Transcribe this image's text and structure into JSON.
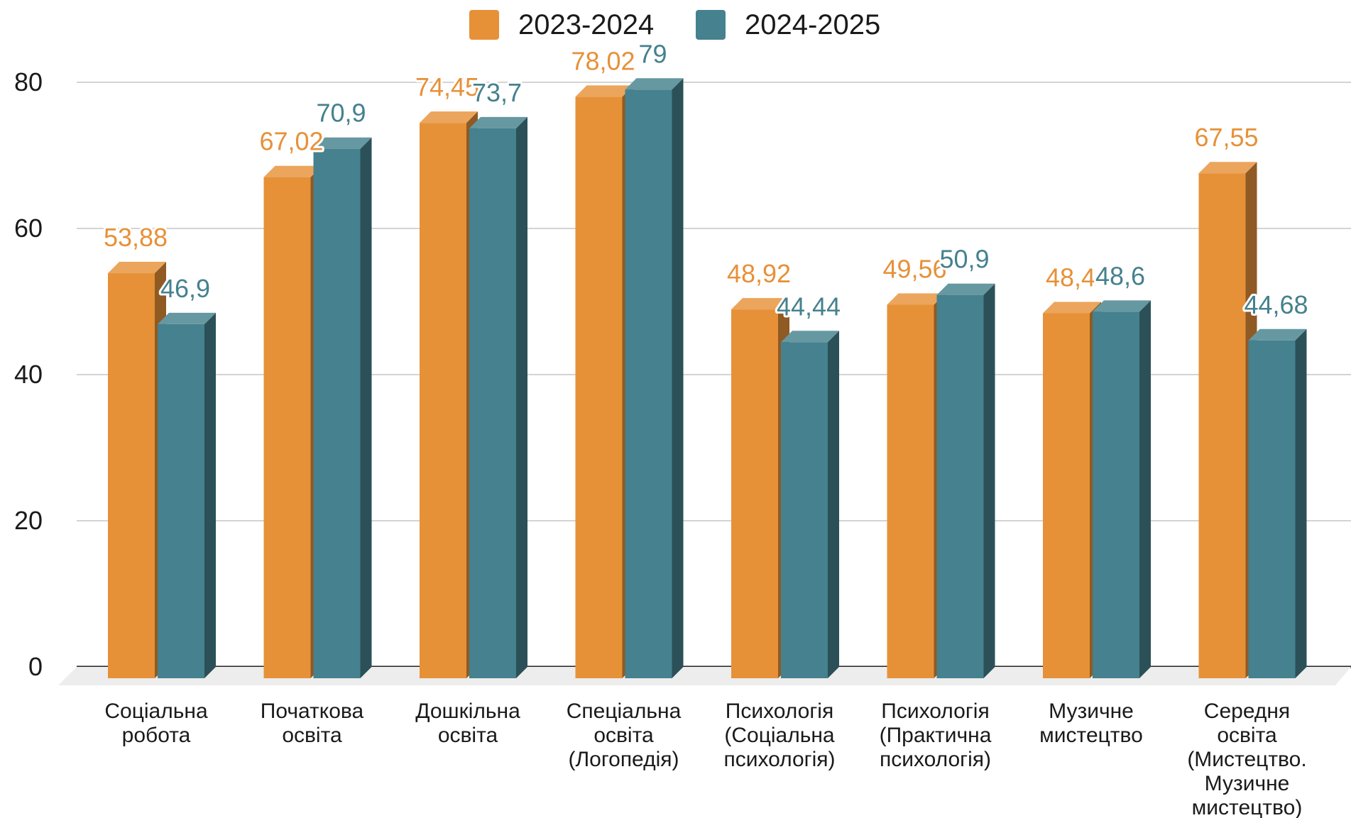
{
  "chart_data": {
    "type": "bar",
    "variant": "3d-grouped",
    "title": "",
    "xlabel": "",
    "ylabel": "",
    "ylim": [
      0,
      80
    ],
    "yticks": [
      0,
      20,
      40,
      60,
      80
    ],
    "grid": true,
    "legend_position": "top-center",
    "categories": [
      [
        "Соціальна",
        "робота"
      ],
      [
        "Початкова",
        "освіта"
      ],
      [
        "Дошкільна",
        "освіта"
      ],
      [
        "Спеціальна",
        "освіта",
        "(Логопедія)"
      ],
      [
        "Психологія",
        "(Соціальна",
        "психологія)"
      ],
      [
        "Психологія",
        "(Практична",
        "психологія)"
      ],
      [
        "Музичне",
        "мистецтво"
      ],
      [
        "Середня",
        "освіта",
        "(Мистецтво.",
        "Музичне",
        "мистецтво)"
      ]
    ],
    "series": [
      {
        "name": "2023-2024",
        "color": "#E69138",
        "values": [
          53.88,
          67.02,
          74.45,
          78.02,
          48.92,
          49.56,
          48.4,
          67.55
        ],
        "labels": [
          "53,88",
          "67,02",
          "74,45",
          "78,02",
          "48,92",
          "49,56",
          "48,4",
          "67,55"
        ]
      },
      {
        "name": "2024-2025",
        "color": "#45818E",
        "values": [
          46.9,
          70.9,
          73.7,
          79,
          44.44,
          50.9,
          48.6,
          44.68
        ],
        "labels": [
          "46,9",
          "70,9",
          "73,7",
          "79",
          "44,44",
          "50,9",
          "48,6",
          "44,68"
        ]
      }
    ]
  }
}
